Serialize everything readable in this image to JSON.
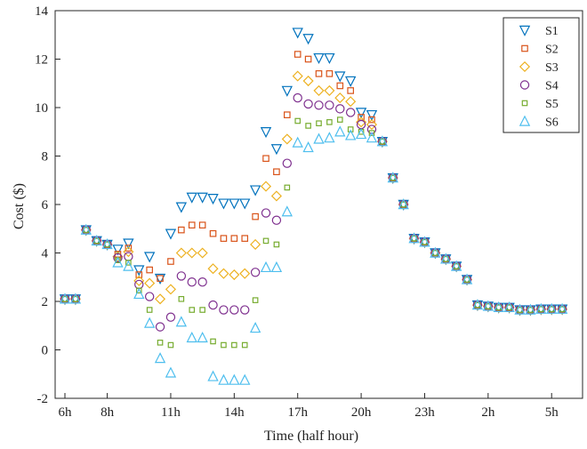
{
  "chart_data": {
    "type": "scatter",
    "xlabel": "Time (half hour)",
    "ylabel": "Cost ($)",
    "xlim": [
      0,
      48
    ],
    "ylim": [
      -2,
      14
    ],
    "x_ticks": [
      {
        "x": 0,
        "label": "6h"
      },
      {
        "x": 4,
        "label": "8h"
      },
      {
        "x": 10,
        "label": "11h"
      },
      {
        "x": 16,
        "label": "14h"
      },
      {
        "x": 22,
        "label": "17h"
      },
      {
        "x": 28,
        "label": "20h"
      },
      {
        "x": 34,
        "label": "23h"
      },
      {
        "x": 40,
        "label": "2h"
      },
      {
        "x": 46,
        "label": "5h"
      }
    ],
    "y_ticks": [
      -2,
      0,
      2,
      4,
      6,
      8,
      10,
      12,
      14
    ],
    "grid": false,
    "legend_position": "top-right",
    "common_points": {
      "x": [
        0,
        1,
        2,
        3,
        4
      ],
      "y": [
        2.1,
        2.1,
        4.95,
        4.5,
        4.35
      ]
    },
    "tail_points": {
      "x": [
        30,
        31,
        32,
        33,
        34,
        35,
        36,
        37,
        38,
        39,
        40,
        41,
        42,
        43,
        44,
        45,
        46,
        47
      ],
      "y": [
        8.6,
        7.1,
        6.0,
        4.6,
        4.45,
        4.0,
        3.75,
        3.45,
        2.9,
        1.85,
        1.8,
        1.75,
        1.75,
        1.65,
        1.65,
        1.68,
        1.68,
        1.68
      ]
    },
    "series_x": [
      5,
      6,
      7,
      8,
      9,
      10,
      11,
      12,
      13,
      14,
      15,
      16,
      17,
      18,
      19,
      20,
      21,
      22,
      23,
      24,
      25,
      26,
      27,
      28,
      29
    ],
    "series": [
      {
        "name": "S1",
        "marker": "triangle-down",
        "color": "#0072BD",
        "values": [
          4.15,
          4.4,
          3.3,
          3.85,
          2.95,
          4.8,
          5.9,
          6.3,
          6.3,
          6.25,
          6.05,
          6.05,
          6.05,
          6.6,
          9.0,
          8.3,
          10.7,
          13.1,
          12.85,
          12.05,
          12.05,
          11.3,
          11.1,
          9.8,
          9.7
        ]
      },
      {
        "name": "S2",
        "marker": "square",
        "color": "#D95319",
        "values": [
          3.95,
          4.2,
          3.1,
          3.3,
          2.95,
          3.65,
          4.95,
          5.15,
          5.15,
          4.8,
          4.6,
          4.6,
          4.6,
          5.5,
          7.9,
          7.35,
          9.7,
          12.2,
          12.0,
          11.4,
          11.4,
          10.9,
          10.7,
          9.6,
          9.5
        ]
      },
      {
        "name": "S3",
        "marker": "diamond",
        "color": "#EDB120",
        "values": [
          3.85,
          4.05,
          2.85,
          2.75,
          2.1,
          2.5,
          4.0,
          4.0,
          4.0,
          3.35,
          3.15,
          3.1,
          3.15,
          4.35,
          6.75,
          6.35,
          8.7,
          11.3,
          11.1,
          10.7,
          10.7,
          10.4,
          10.25,
          9.4,
          9.3
        ]
      },
      {
        "name": "S4",
        "marker": "circle",
        "color": "#7E2F8E",
        "values": [
          3.8,
          3.85,
          2.7,
          2.2,
          0.95,
          1.35,
          3.05,
          2.8,
          2.8,
          1.85,
          1.65,
          1.65,
          1.65,
          3.2,
          5.65,
          5.35,
          7.7,
          10.4,
          10.15,
          10.1,
          10.1,
          9.95,
          9.8,
          9.3,
          9.1
        ]
      },
      {
        "name": "S5",
        "marker": "square-small",
        "color": "#77AC30",
        "values": [
          3.7,
          3.6,
          2.45,
          1.65,
          0.3,
          0.2,
          2.1,
          1.65,
          1.65,
          0.35,
          0.2,
          0.2,
          0.2,
          2.05,
          4.5,
          4.35,
          6.7,
          9.45,
          9.25,
          9.35,
          9.4,
          9.5,
          9.1,
          9.0,
          8.95
        ]
      },
      {
        "name": "S6",
        "marker": "triangle-up",
        "color": "#4DBEEE",
        "values": [
          3.6,
          3.45,
          2.3,
          1.1,
          -0.35,
          -0.95,
          1.15,
          0.5,
          0.5,
          -1.1,
          -1.25,
          -1.25,
          -1.25,
          0.9,
          3.4,
          3.4,
          5.7,
          8.55,
          8.35,
          8.7,
          8.75,
          9.0,
          8.85,
          8.9,
          8.75
        ]
      }
    ]
  }
}
